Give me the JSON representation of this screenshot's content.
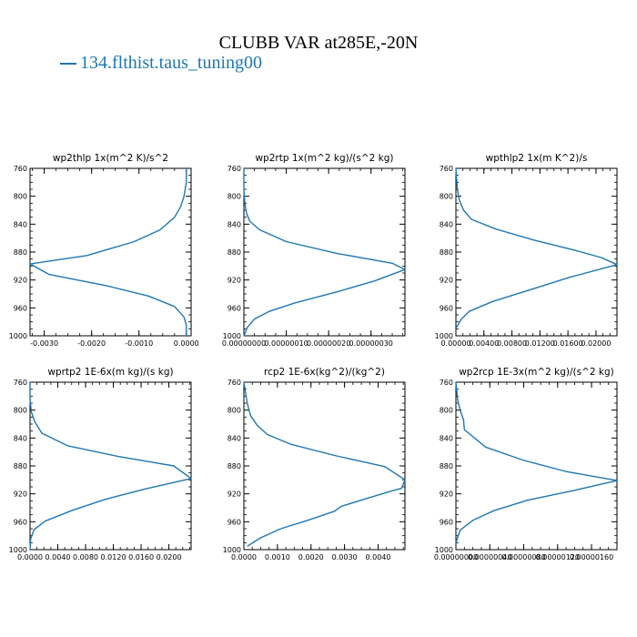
{
  "title": "CLUBB VAR at285E,-20N",
  "legend": {
    "label": "134.flthist.taus_tuning00",
    "color": "#1f77b4"
  },
  "line_color": "#1f77b4",
  "chart_data": [
    {
      "type": "line",
      "title": "wp2thlp  1x(m^2 K)/s^2",
      "x_tick_labels": [
        "-0.0030",
        "-0.0020",
        "-0.0010",
        "0.0000"
      ],
      "x_ticks": [
        -0.003,
        -0.002,
        -0.001,
        0.0
      ],
      "xlim": [
        -0.0033,
        0.0001
      ],
      "ylim": [
        760,
        1000
      ],
      "y_ticks": [
        760,
        800,
        840,
        880,
        920,
        960,
        1000
      ],
      "series": [
        {
          "x": [
            0.0,
            0.0,
            -5e-05,
            -0.00012,
            -0.00025,
            -0.00055,
            -0.0011,
            -0.0021,
            -0.0033,
            -0.0029,
            -0.0017,
            -0.0008,
            -0.00025,
            -5e-05,
            0.0,
            0.0
          ],
          "y": [
            760,
            780,
            800,
            815,
            830,
            848,
            865,
            885,
            897,
            912,
            928,
            943,
            958,
            973,
            985,
            1000
          ]
        }
      ]
    },
    {
      "type": "line",
      "title": "wp2rtp  1x(m^2 kg)/(s^2 kg)",
      "x_tick_labels": [
        "0.00000000",
        "0.00000010",
        "0.00000020",
        "0.00000030"
      ],
      "x_ticks": [
        0,
        1e-07,
        2e-07,
        3e-07
      ],
      "xlim": [
        0,
        3.8e-07
      ],
      "ylim": [
        760,
        1000
      ],
      "y_ticks": [
        760,
        800,
        840,
        880,
        920,
        960,
        1000
      ],
      "series": [
        {
          "x": [
            0,
            0,
            2e-09,
            6e-09,
            1.4e-08,
            3.7e-08,
            1e-07,
            2.2e-07,
            3.5e-07,
            3.8e-07,
            3.1e-07,
            2.2e-07,
            1.2e-07,
            6e-08,
            2.5e-08,
            8e-09,
            0
          ],
          "y": [
            760,
            790,
            808,
            824,
            836,
            848,
            865,
            882,
            896,
            905,
            921,
            937,
            953,
            965,
            976,
            988,
            1000
          ]
        }
      ]
    },
    {
      "type": "line",
      "title": "wpthlp2  1x(m K^2)/s",
      "x_tick_labels": [
        "0.00000",
        "0.00400",
        "0.00800",
        "0.01200",
        "0.01600",
        "0.02000"
      ],
      "x_ticks": [
        0,
        0.004,
        0.008,
        0.012,
        0.016,
        0.02
      ],
      "xlim": [
        0,
        0.023
      ],
      "ylim": [
        760,
        1000
      ],
      "y_ticks": [
        760,
        800,
        840,
        880,
        920,
        960,
        1000
      ],
      "series": [
        {
          "x": [
            0.0,
            0.0002,
            0.0005,
            0.0011,
            0.0022,
            0.0057,
            0.0112,
            0.0172,
            0.0208,
            0.023,
            0.0163,
            0.0106,
            0.0052,
            0.0019,
            0.0007,
            0.0001
          ],
          "y": [
            760,
            790,
            806,
            820,
            833,
            847,
            863,
            878,
            888,
            898,
            916,
            934,
            951,
            965,
            977,
            988
          ]
        }
      ]
    },
    {
      "type": "line",
      "title": "wprtp2  1E-6x(m kg)/(s kg)",
      "x_tick_labels": [
        "0.0000",
        "0.0040",
        "0.0080",
        "0.0120",
        "0.0160",
        "0.0200"
      ],
      "x_ticks": [
        0,
        0.004,
        0.008,
        0.012,
        0.016,
        0.02
      ],
      "xlim": [
        0,
        0.0232
      ],
      "ylim": [
        760,
        1000
      ],
      "y_ticks": [
        760,
        800,
        840,
        880,
        920,
        960,
        1000
      ],
      "series": [
        {
          "x": [
            0.0,
            0.0,
            0.0002,
            0.0007,
            0.0017,
            0.0054,
            0.0125,
            0.0207,
            0.0232,
            0.0166,
            0.0108,
            0.006,
            0.0022,
            0.0006,
            0.0001,
            0.0
          ],
          "y": [
            760,
            785,
            803,
            817,
            833,
            851,
            866,
            880,
            898,
            913,
            928,
            944,
            959,
            971,
            984,
            1000
          ]
        }
      ]
    },
    {
      "type": "line",
      "title": "rcp2  1E-6x(kg^2)/(kg^2)",
      "x_tick_labels": [
        "0.0000",
        "0.0010",
        "0.0020",
        "0.0030",
        "0.0040"
      ],
      "x_ticks": [
        0,
        0.001,
        0.002,
        0.003,
        0.004
      ],
      "xlim": [
        0,
        0.0048
      ],
      "ylim": [
        760,
        1000
      ],
      "y_ticks": [
        760,
        800,
        840,
        880,
        920,
        960,
        1000
      ],
      "series": [
        {
          "x": [
            0.0,
            0.0001,
            0.0002,
            0.0004,
            0.0007,
            0.0014,
            0.0027,
            0.0042,
            0.0048,
            0.0047,
            0.0044,
            0.0035,
            0.0029,
            0.0027,
            0.0019,
            0.0011,
            0.0005,
            0.0001
          ],
          "y": [
            760,
            790,
            808,
            822,
            835,
            849,
            865,
            881,
            900,
            912,
            916,
            929,
            938,
            945,
            958,
            970,
            983,
            995
          ]
        }
      ]
    },
    {
      "type": "line",
      "title": "wp2rcp  1E-3x(m^2 kg)/(s^2 kg)",
      "x_tick_labels": [
        "0.00000000",
        "0.00000040",
        "0.00000080",
        "0.00000120",
        "0.00000160"
      ],
      "x_ticks": [
        0,
        4e-07,
        8e-07,
        1.2e-06,
        1.6e-06
      ],
      "xlim": [
        0,
        1.9e-06
      ],
      "ylim": [
        760,
        1000
      ],
      "y_ticks": [
        760,
        800,
        840,
        880,
        920,
        960,
        1000
      ],
      "series": [
        {
          "x": [
            0.0,
            2e-08,
            5e-08,
            9e-08,
            1e-07,
            3.5e-07,
            8e-07,
            1.3e-06,
            1.9e-06,
            1.4e-06,
            8.5e-07,
            4.5e-07,
            2e-07,
            5e-08,
            0.0
          ],
          "y": [
            760,
            785,
            800,
            814,
            828,
            853,
            872,
            888,
            901,
            915,
            929,
            944,
            958,
            972,
            990
          ]
        }
      ]
    }
  ]
}
